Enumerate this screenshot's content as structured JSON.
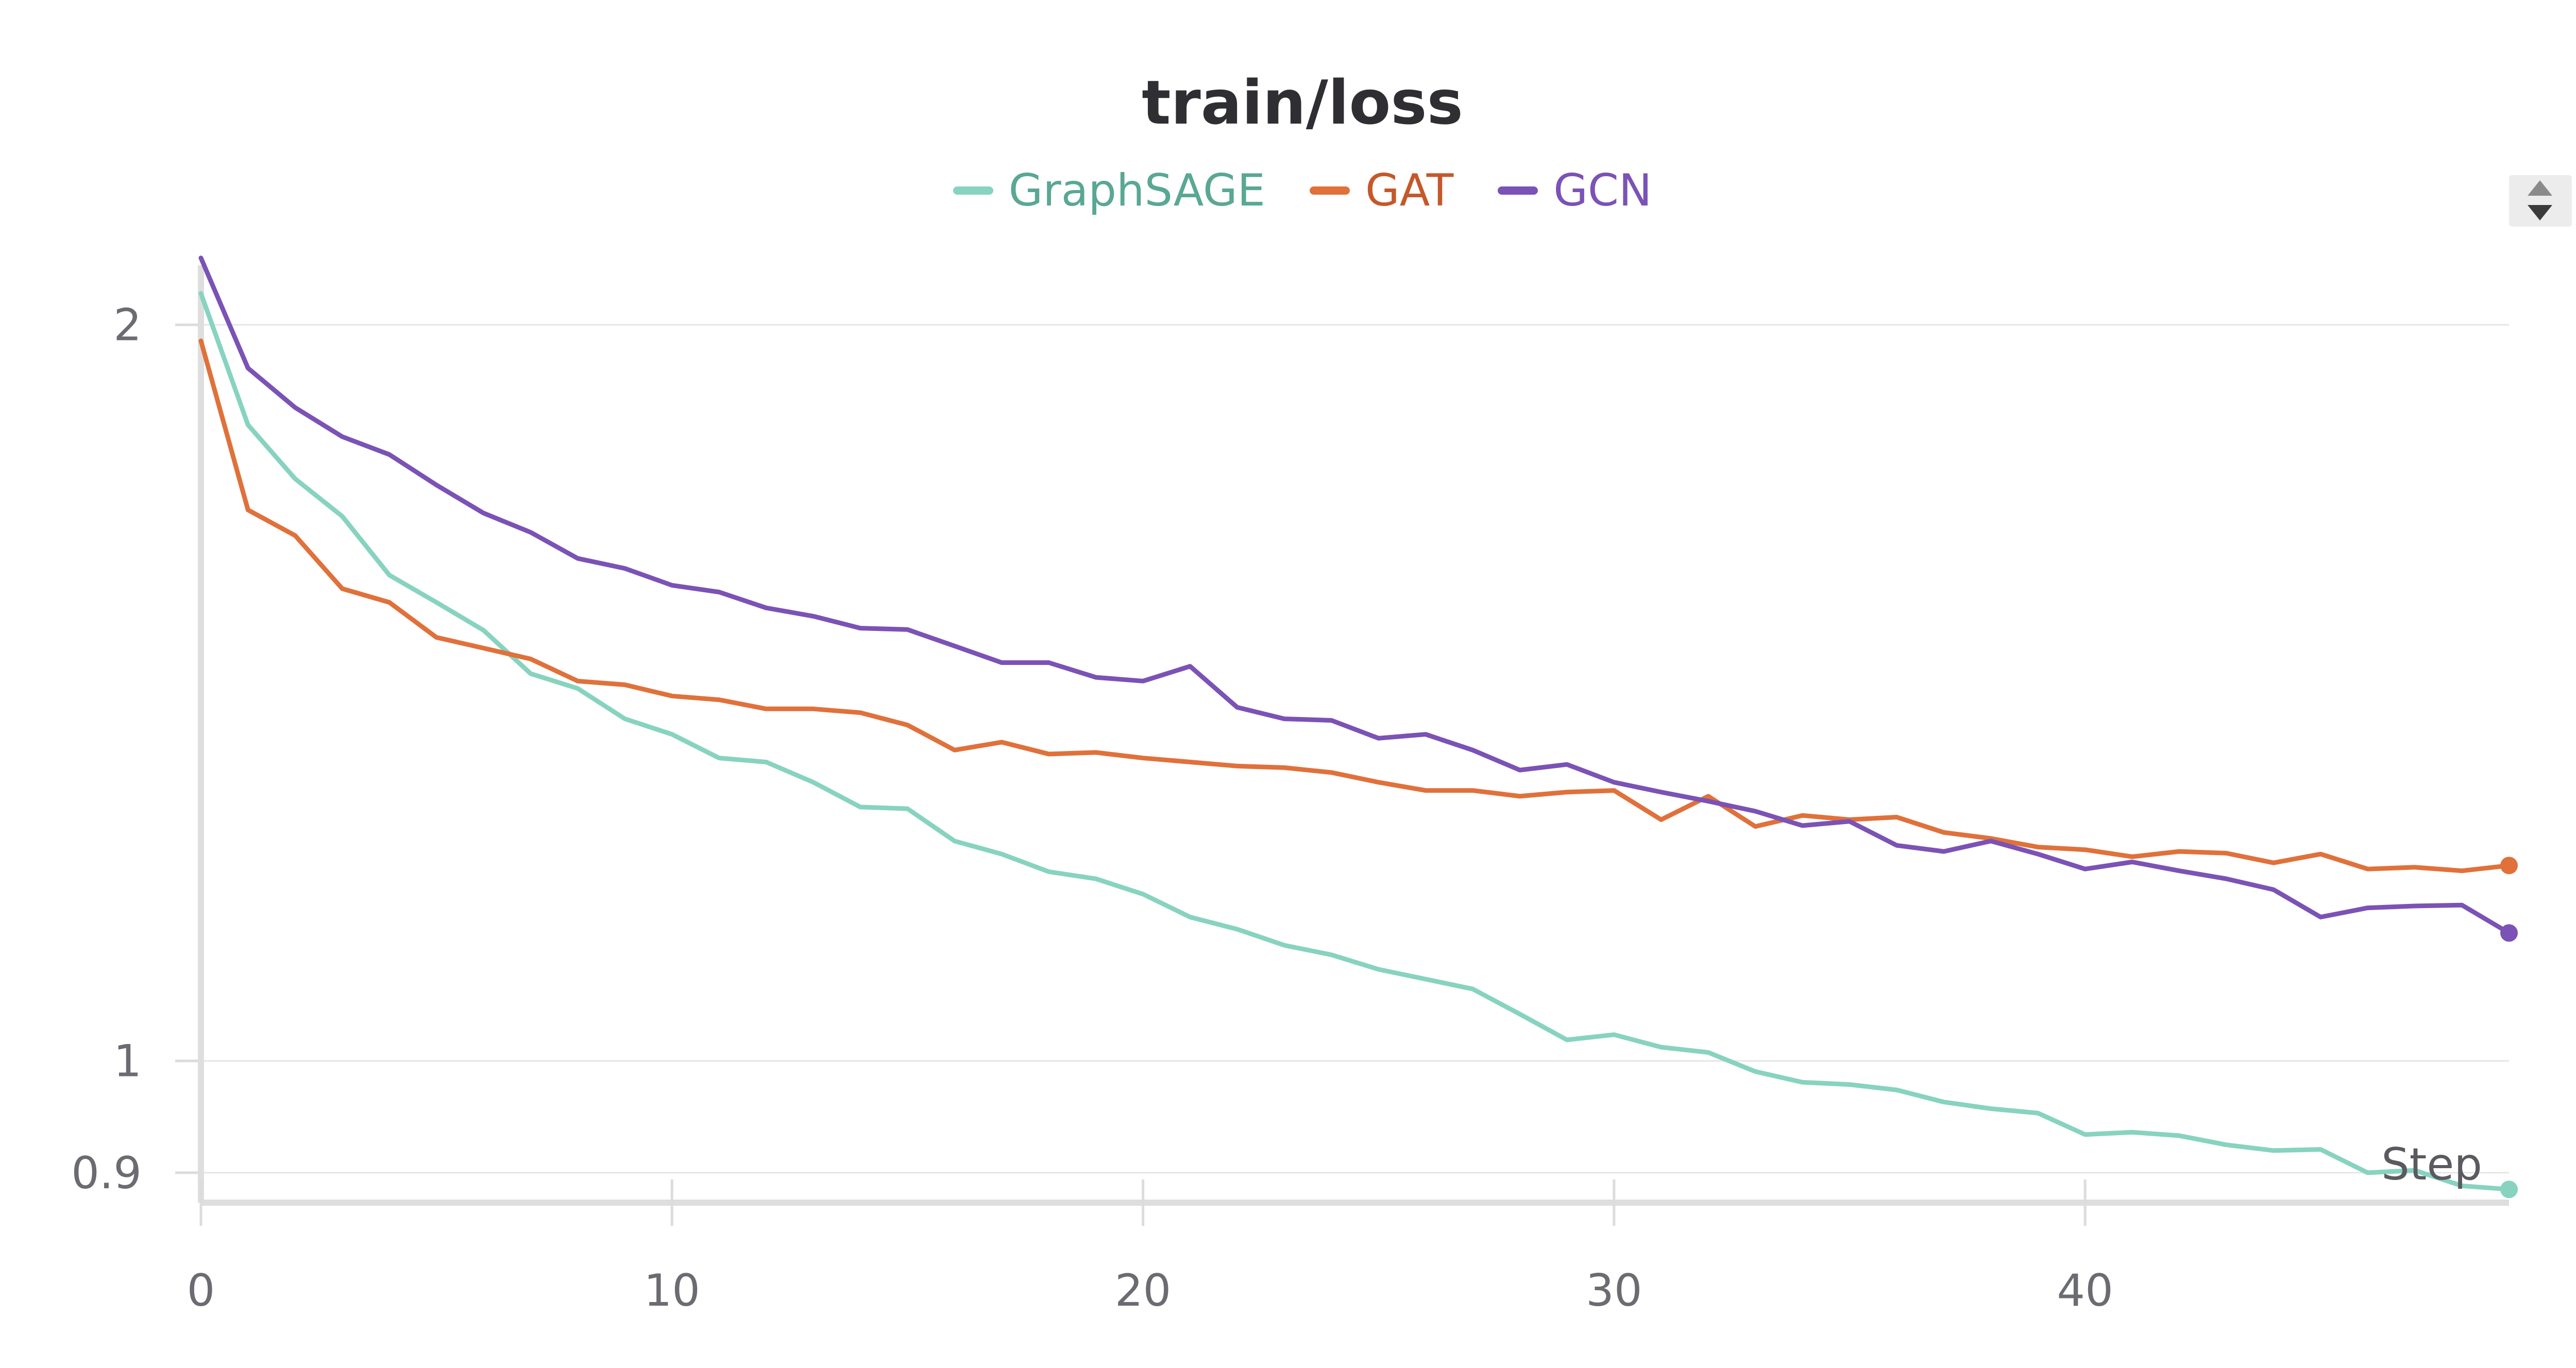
{
  "chart_data": {
    "type": "line",
    "title": "train/loss",
    "xlabel": "Step",
    "ylabel": "",
    "xlim": [
      0,
      49
    ],
    "ylim": [
      0.875,
      2.1
    ],
    "y_scale": "log",
    "x_ticks": [
      0,
      10,
      20,
      30,
      40
    ],
    "y_ticks": [
      0.9,
      1,
      2
    ],
    "y_tick_labels": [
      "0.9",
      "1",
      "2"
    ],
    "grid": true,
    "legend_position": "top-center",
    "x": [
      0,
      1,
      2,
      3,
      4,
      5,
      6,
      7,
      8,
      9,
      10,
      11,
      12,
      13,
      14,
      15,
      16,
      17,
      18,
      19,
      20,
      21,
      22,
      23,
      24,
      25,
      26,
      27,
      28,
      29,
      30,
      31,
      32,
      33,
      34,
      35,
      36,
      37,
      38,
      39,
      40,
      41,
      42,
      43,
      44,
      45,
      46,
      47,
      48,
      49
    ],
    "series": [
      {
        "name": "GraphSAGE",
        "color": "#87d3c0",
        "values": [
          2.06,
          1.82,
          1.73,
          1.67,
          1.58,
          1.54,
          1.5,
          1.44,
          1.42,
          1.38,
          1.36,
          1.33,
          1.325,
          1.3,
          1.27,
          1.268,
          1.23,
          1.215,
          1.195,
          1.187,
          1.17,
          1.145,
          1.132,
          1.115,
          1.105,
          1.09,
          1.08,
          1.07,
          1.045,
          1.02,
          1.025,
          1.013,
          1.008,
          0.99,
          0.98,
          0.978,
          0.973,
          0.962,
          0.956,
          0.952,
          0.933,
          0.935,
          0.932,
          0.924,
          0.919,
          0.92,
          0.9,
          0.902,
          0.889,
          0.886
        ]
      },
      {
        "name": "GAT",
        "color": "#e0713a",
        "values": [
          1.97,
          1.68,
          1.64,
          1.56,
          1.54,
          1.49,
          1.475,
          1.46,
          1.43,
          1.425,
          1.41,
          1.405,
          1.393,
          1.393,
          1.388,
          1.372,
          1.34,
          1.35,
          1.335,
          1.337,
          1.33,
          1.325,
          1.32,
          1.318,
          1.312,
          1.3,
          1.29,
          1.29,
          1.283,
          1.288,
          1.29,
          1.255,
          1.283,
          1.247,
          1.26,
          1.255,
          1.258,
          1.24,
          1.233,
          1.223,
          1.22,
          1.212,
          1.218,
          1.216,
          1.205,
          1.215,
          1.198,
          1.2,
          1.196,
          1.202
        ]
      },
      {
        "name": "GCN",
        "color": "#7b52b5",
        "values": [
          2.13,
          1.92,
          1.85,
          1.8,
          1.77,
          1.72,
          1.675,
          1.645,
          1.605,
          1.59,
          1.565,
          1.555,
          1.532,
          1.52,
          1.503,
          1.501,
          1.478,
          1.455,
          1.455,
          1.435,
          1.43,
          1.45,
          1.395,
          1.38,
          1.378,
          1.355,
          1.36,
          1.34,
          1.315,
          1.322,
          1.3,
          1.288,
          1.277,
          1.265,
          1.248,
          1.253,
          1.225,
          1.218,
          1.23,
          1.215,
          1.198,
          1.206,
          1.196,
          1.187,
          1.175,
          1.145,
          1.155,
          1.157,
          1.158,
          1.128
        ]
      }
    ]
  }
}
